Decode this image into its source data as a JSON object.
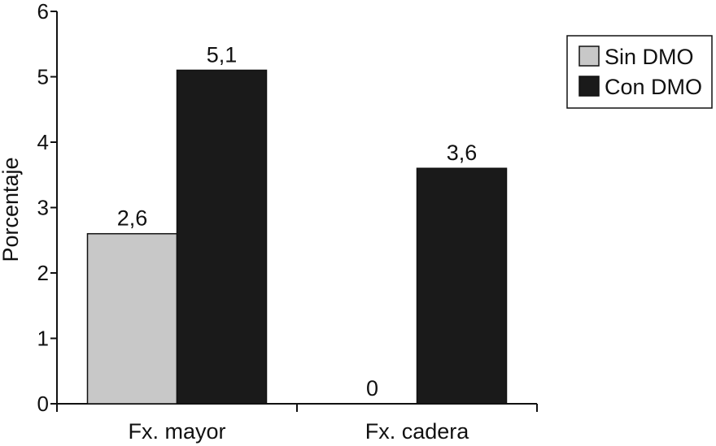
{
  "chart_data": {
    "type": "bar",
    "categories": [
      "Fx. mayor",
      "Fx. cadera"
    ],
    "series": [
      {
        "name": "Sin DMO",
        "values": [
          2.6,
          0
        ],
        "labels": [
          "2,6",
          "0"
        ],
        "color": "#c8c8c8"
      },
      {
        "name": "Con DMO",
        "values": [
          5.1,
          3.6
        ],
        "labels": [
          "5,1",
          "3,6"
        ],
        "color": "#1a1a1a"
      }
    ],
    "ylabel": "Porcentaje",
    "ylim": [
      0,
      6
    ],
    "yticks": [
      "0",
      "1",
      "2",
      "3",
      "4",
      "5",
      "6"
    ],
    "legend_position": "top-right",
    "grid": false
  }
}
